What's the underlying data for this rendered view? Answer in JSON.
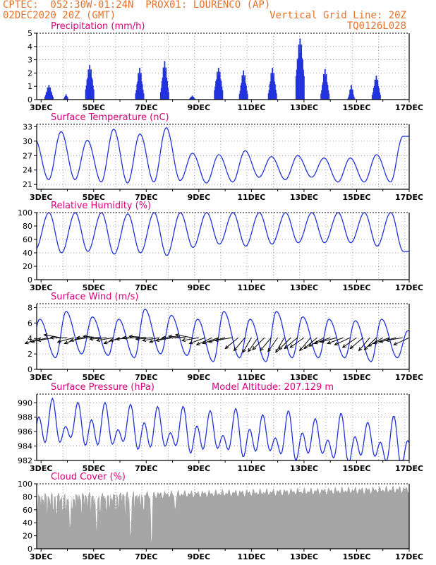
{
  "header": {
    "line1": "CPTEC:  052:30W-01:24N  PROX01: LOURENCO (AP)",
    "line2": "02DEC2020 20Z (GMT)",
    "grid_note": "Vertical Grid Line: 20Z",
    "code": "TQ0126L028"
  },
  "colors": {
    "header": "#e8722a",
    "title": "#e0007a",
    "series": "#2233dd",
    "cloud": "#a6a6a6",
    "arrow": "#000000",
    "grid": "#888888"
  },
  "x_axis": {
    "ticks": [
      "3DEC",
      "5DEC",
      "7DEC",
      "9DEC",
      "11DEC",
      "13DEC",
      "15DEC",
      "17DEC"
    ],
    "start_day": 2.833,
    "end_day": 17.0
  },
  "chart_data": [
    {
      "type": "bar",
      "title": "Precipitation (mm/h)",
      "ylim": [
        0,
        5
      ],
      "yticks": [
        0,
        1,
        2,
        3,
        4,
        5
      ],
      "events": [
        {
          "day": 3.3,
          "peak": 1.1,
          "width": 0.12
        },
        {
          "day": 3.95,
          "peak": 0.4,
          "width": 0.06
        },
        {
          "day": 4.85,
          "peak": 2.6,
          "width": 0.14
        },
        {
          "day": 6.75,
          "peak": 2.4,
          "width": 0.12
        },
        {
          "day": 7.7,
          "peak": 2.9,
          "width": 0.12
        },
        {
          "day": 8.75,
          "peak": 0.3,
          "width": 0.08
        },
        {
          "day": 9.75,
          "peak": 2.4,
          "width": 0.14
        },
        {
          "day": 10.7,
          "peak": 2.2,
          "width": 0.12
        },
        {
          "day": 11.8,
          "peak": 2.4,
          "width": 0.12
        },
        {
          "day": 12.85,
          "peak": 4.6,
          "width": 0.16
        },
        {
          "day": 13.8,
          "peak": 2.3,
          "width": 0.12
        },
        {
          "day": 14.8,
          "peak": 1.1,
          "width": 0.08
        },
        {
          "day": 15.75,
          "peak": 1.8,
          "width": 0.12
        }
      ]
    },
    {
      "type": "line",
      "title": "Surface Temperature (nC)",
      "ylim": [
        20,
        33.5
      ],
      "yticks": [
        21,
        24,
        27,
        30,
        33
      ],
      "diurnal": {
        "min_day_offset": 0.29,
        "max_day_offset": 0.76,
        "max": [
          30.5,
          32.0,
          30.2,
          32.5,
          31.5,
          32.8,
          27.5,
          27.2,
          28.0,
          26.8,
          27.0,
          26.5,
          26.5,
          27.2,
          31.0
        ],
        "min": [
          20.5,
          22.0,
          22.0,
          21.5,
          21.3,
          21.5,
          21.8,
          21.3,
          21.5,
          22.5,
          22.0,
          22.5,
          21.5,
          21.5,
          21.5
        ]
      }
    },
    {
      "type": "line",
      "title": "Relative Humidity (%)",
      "ylim": [
        0,
        100
      ],
      "yticks": [
        0,
        20,
        40,
        60,
        80,
        100
      ],
      "diurnal": {
        "min_day_offset": 0.78,
        "max_day_offset": 0.3,
        "max": [
          100,
          100,
          100,
          100,
          98,
          100,
          100,
          100,
          100,
          100,
          100,
          100,
          100,
          100,
          100
        ],
        "min": [
          45,
          40,
          42,
          38,
          40,
          36,
          48,
          53,
          50,
          53,
          55,
          55,
          55,
          50,
          42
        ]
      }
    },
    {
      "type": "line",
      "title": "Surface Wind (m/s)",
      "ylim": [
        0,
        8.5
      ],
      "yticks": [
        0,
        2,
        4,
        6,
        8
      ],
      "diurnal": {
        "min_day_offset": 0.55,
        "max_day_offset": 0.95,
        "max": [
          6.5,
          7.5,
          6.8,
          6.5,
          7.8,
          7.0,
          6.5,
          7.5,
          6.5,
          7.5,
          6.8,
          6.5,
          6.3,
          6.5,
          5.0
        ],
        "min": [
          1.5,
          1.5,
          2.0,
          1.8,
          1.5,
          2.0,
          1.8,
          1.0,
          1.5,
          1.0,
          1.5,
          1.5,
          1.5,
          1.0,
          1.5
        ]
      },
      "arrows": {
        "y_level": 4.1,
        "start_day": 3.0,
        "step_day": 0.25,
        "direction_deg": [
          200,
          195,
          190,
          170,
          180,
          195,
          200,
          190,
          180,
          175,
          185,
          190,
          200,
          190,
          185,
          180,
          175,
          185,
          190,
          195,
          190,
          180,
          175,
          170,
          190,
          200,
          205,
          200,
          195,
          190,
          220,
          230,
          240,
          235,
          225,
          230,
          235,
          240,
          225,
          220,
          215,
          230,
          220,
          210,
          200,
          195,
          200,
          205,
          215,
          220,
          230,
          225,
          210,
          200,
          195,
          190,
          205,
          215,
          210,
          200
        ]
      }
    },
    {
      "type": "line",
      "title": "Surface Pressure (hPa)",
      "note": "Model Altitude: 207.129  m",
      "ylim": [
        982,
        991.2
      ],
      "yticks": [
        982,
        984,
        986,
        988,
        990
      ],
      "semidiurnal": {
        "base_start": 987.0,
        "base_end": 984.0,
        "amp1": 1.5,
        "amp2": 2.0
      }
    },
    {
      "type": "area",
      "title": "Cloud Cover (%)",
      "ylim": [
        0,
        100
      ],
      "yticks": [
        0,
        20,
        40,
        60,
        80,
        100
      ],
      "profile": {
        "mean_early": 80,
        "mean_late": 92,
        "dip_days": [
          4.1,
          5.1,
          6.4,
          7.2,
          8.1
        ],
        "dip_values": [
          30,
          40,
          15,
          5,
          60
        ]
      }
    }
  ]
}
